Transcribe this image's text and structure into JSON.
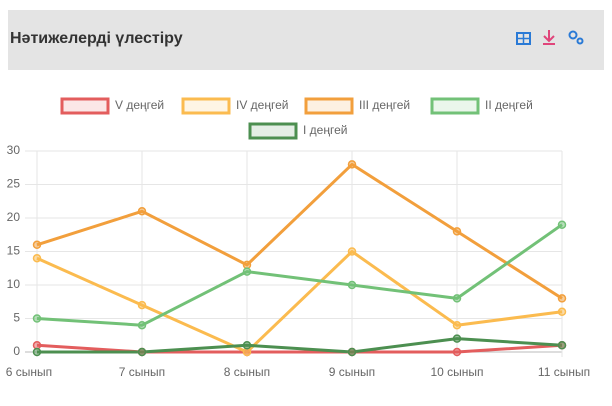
{
  "header": {
    "title": "Нәтижелерді үлестіру"
  },
  "chart_data": {
    "type": "line",
    "categories": [
      "6 сынып",
      "7 сынып",
      "8 сынып",
      "9 сынып",
      "10 сынып",
      "11 сынып"
    ],
    "series": [
      {
        "name": "V деңгей",
        "color": "#e35d5d",
        "values": [
          1,
          0,
          0,
          0,
          0,
          1
        ]
      },
      {
        "name": "IV деңгей",
        "color": "#fbbb4f",
        "values": [
          14,
          7,
          0,
          15,
          4,
          6
        ]
      },
      {
        "name": "III деңгей",
        "color": "#f29f3c",
        "values": [
          16,
          21,
          13,
          28,
          18,
          8
        ]
      },
      {
        "name": "II деңгей",
        "color": "#72c177",
        "values": [
          5,
          4,
          12,
          10,
          8,
          19
        ]
      },
      {
        "name": "I деңгей",
        "color": "#4c8f50",
        "values": [
          0,
          0,
          1,
          0,
          2,
          1
        ]
      }
    ],
    "ylim": [
      0,
      30
    ],
    "yticks": [
      0,
      5,
      10,
      15,
      20,
      25,
      30
    ],
    "grid": true
  }
}
